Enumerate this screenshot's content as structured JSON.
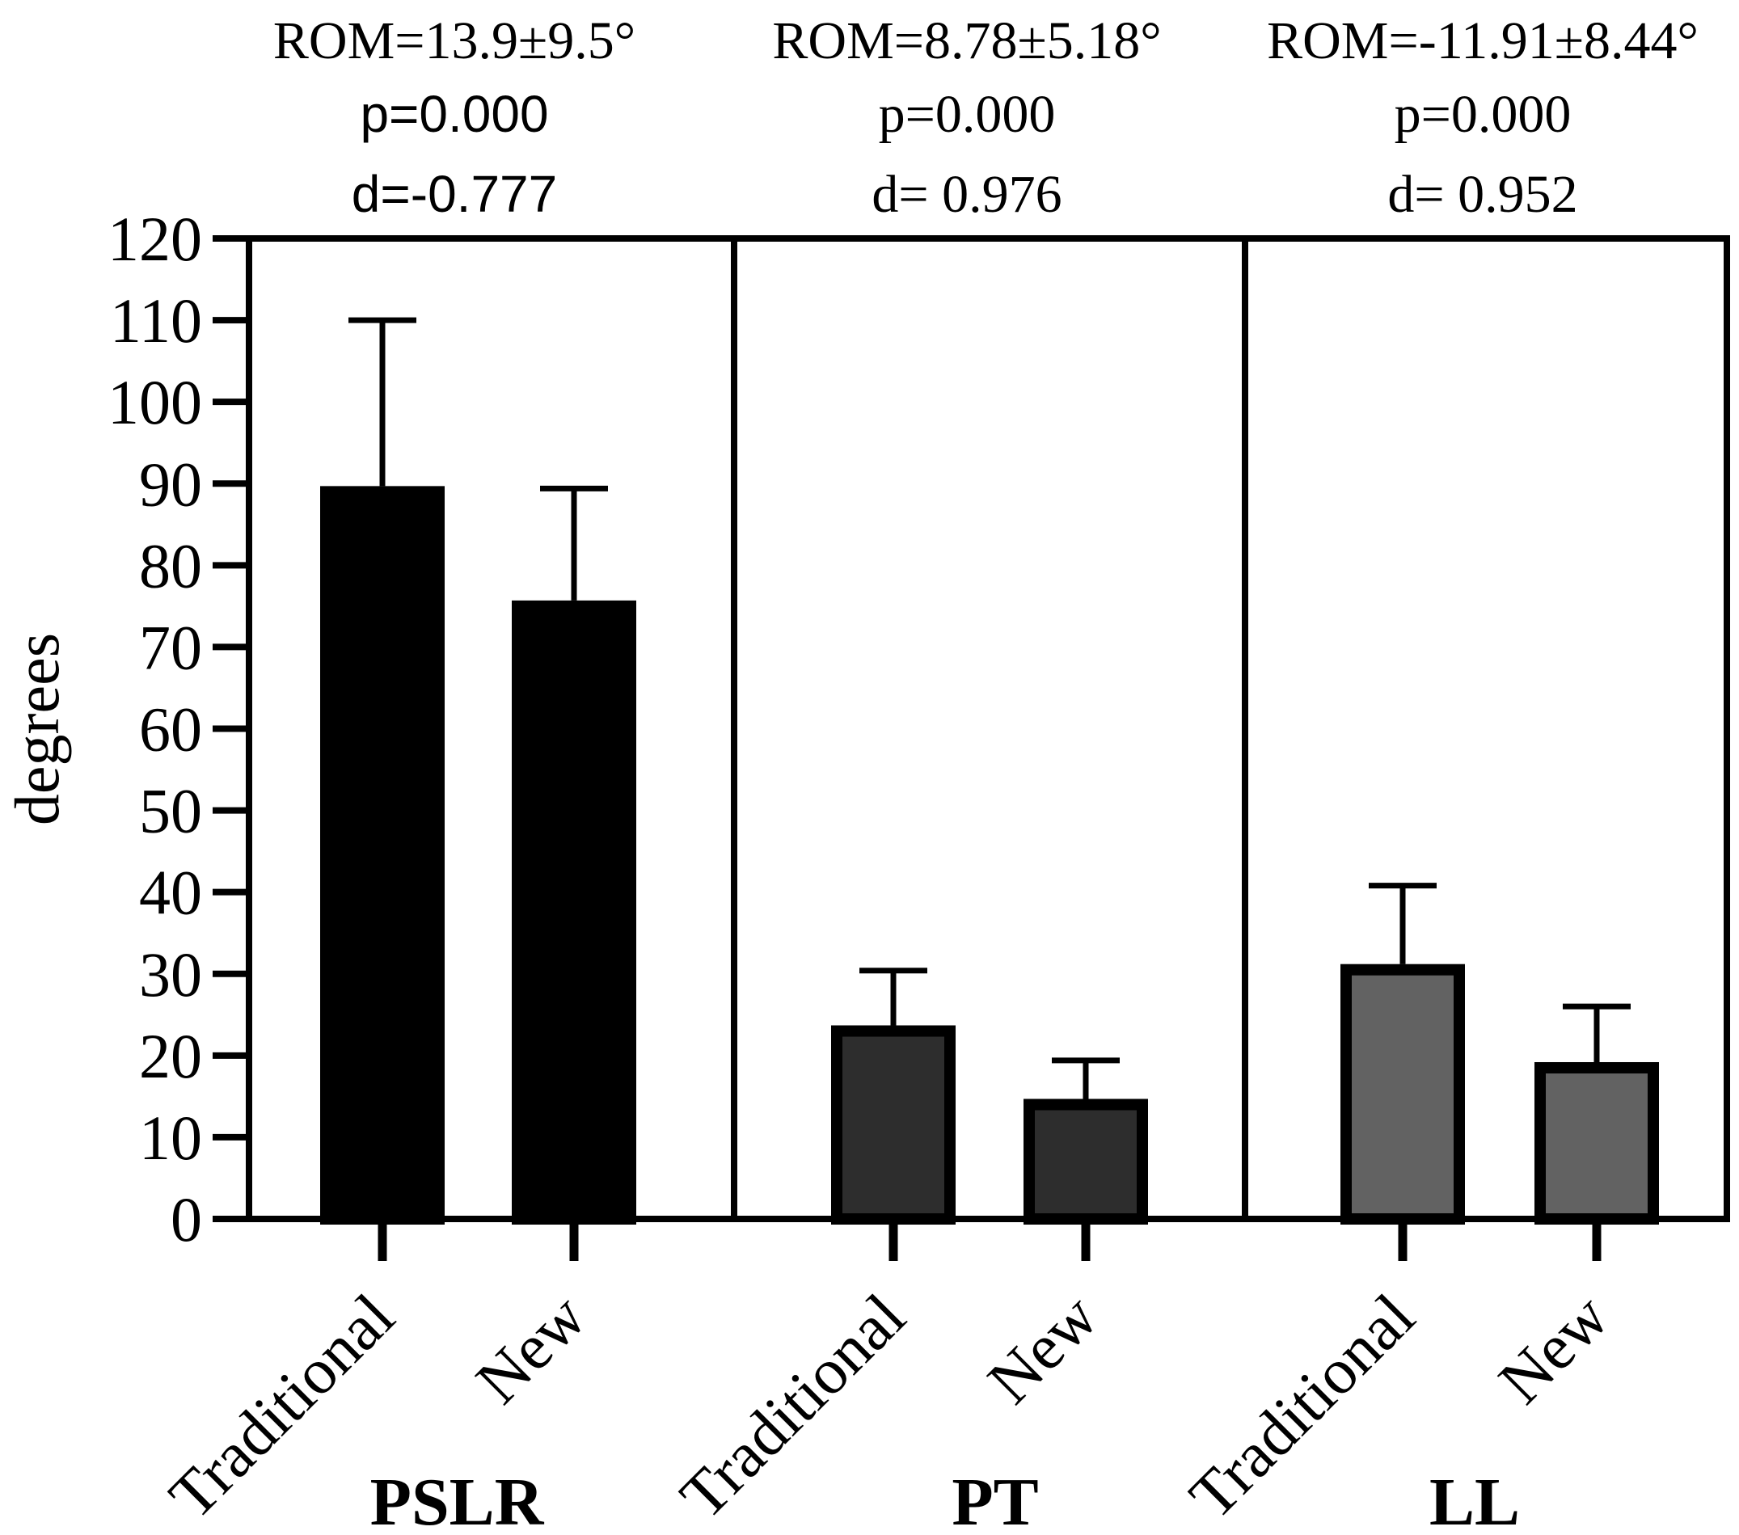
{
  "chart_data": {
    "type": "bar",
    "title": "",
    "xlabel": "",
    "ylabel": "degrees",
    "ylim": [
      0,
      120
    ],
    "yticks": [
      0,
      10,
      20,
      30,
      40,
      50,
      60,
      70,
      80,
      90,
      100,
      110,
      120
    ],
    "grid": false,
    "legend": "none",
    "panels": [
      {
        "group": "PSLR",
        "annotation": {
          "rom": "ROM=13.9±9.5°",
          "p": "p=0.000",
          "d": "d=-0.777"
        },
        "categories": [
          "Traditional",
          "New"
        ],
        "values": [
          89,
          75
        ],
        "errors": [
          21,
          14.4
        ],
        "color": "#000000"
      },
      {
        "group": "PT",
        "annotation": {
          "rom": "ROM=8.78±5.18°",
          "p": "p=0.000",
          "d": "d= 0.976"
        },
        "categories": [
          "Traditional",
          "New"
        ],
        "values": [
          23,
          14
        ],
        "errors": [
          7.4,
          5.4
        ],
        "color": "#2d2d2d"
      },
      {
        "group": "LL",
        "annotation": {
          "rom": "ROM=-11.91±8.44°",
          "p": "p=0.000",
          "d": "d= 0.952"
        },
        "categories": [
          "Traditional",
          "New"
        ],
        "values": [
          30.5,
          18.5
        ],
        "errors": [
          10.3,
          7.5
        ],
        "color": "#626262"
      }
    ]
  },
  "colors": {
    "axis": "#000000",
    "background": "#ffffff",
    "bar_border": "#000000"
  }
}
